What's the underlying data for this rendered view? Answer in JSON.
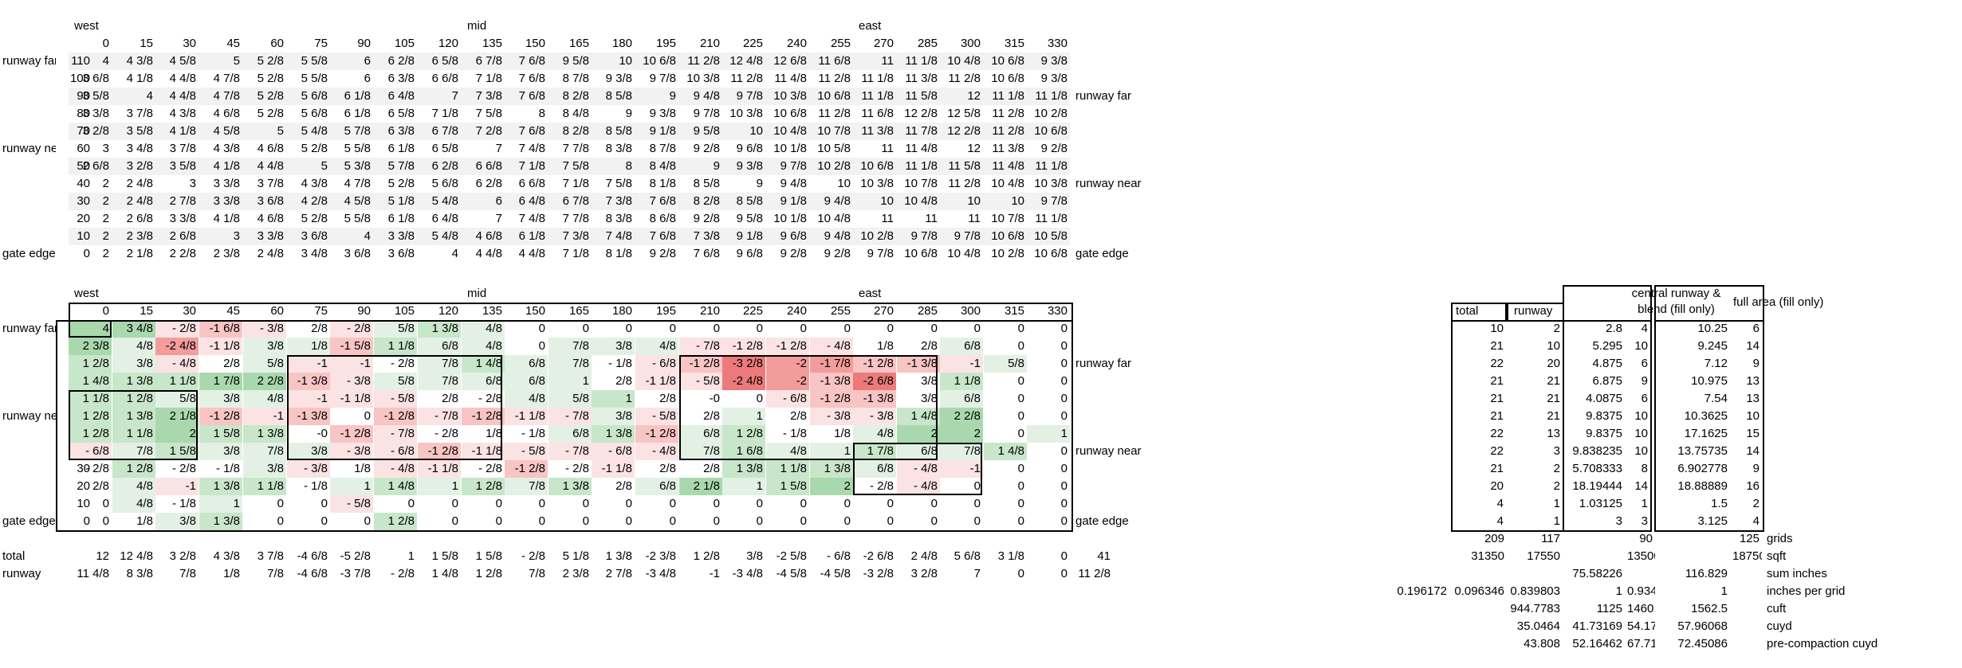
{
  "columns": [
    "0",
    "15",
    "30",
    "45",
    "60",
    "75",
    "90",
    "105",
    "120",
    "135",
    "150",
    "165",
    "180",
    "195",
    "210",
    "225",
    "240",
    "255",
    "270",
    "285",
    "300",
    "315",
    "330"
  ],
  "zones": [
    "west",
    "mid",
    "east"
  ],
  "row_labels": {
    "runway_far": "runway far",
    "runway_near": "runway near",
    "gate_edge": "gate edge"
  },
  "elevations": [
    {
      "label": "runway far",
      "y": "110",
      "values": [
        "4",
        "4 3/8",
        "4 5/8",
        "5",
        "5 2/8",
        "5 5/8",
        "6",
        "6 2/8",
        "6 5/8",
        "6 7/8",
        "7 6/8",
        "9 5/8",
        "10",
        "10 6/8",
        "11 2/8",
        "12 4/8",
        "12 6/8",
        "11 6/8",
        "11",
        "11 1/8",
        "10 4/8",
        "10 6/8",
        "9 3/8"
      ],
      "side": ""
    },
    {
      "label": "",
      "y": "100",
      "values": [
        "3 6/8",
        "4 1/8",
        "4 4/8",
        "4 7/8",
        "5 2/8",
        "5 5/8",
        "6",
        "6 3/8",
        "6 6/8",
        "7 1/8",
        "7 6/8",
        "8 7/8",
        "9 3/8",
        "9 7/8",
        "10 3/8",
        "11 2/8",
        "11 4/8",
        "11 2/8",
        "11 1/8",
        "11 3/8",
        "11 2/8",
        "10 6/8",
        "9 3/8"
      ],
      "side": ""
    },
    {
      "label": "",
      "y": "90",
      "values": [
        "3 5/8",
        "4",
        "4 4/8",
        "4 7/8",
        "5 2/8",
        "5 6/8",
        "6 1/8",
        "6 4/8",
        "7",
        "7 3/8",
        "7 6/8",
        "8 2/8",
        "8 5/8",
        "9",
        "9 4/8",
        "9 7/8",
        "10 3/8",
        "10 6/8",
        "11 1/8",
        "11 5/8",
        "12",
        "11 1/8",
        "11 1/8"
      ],
      "side": "runway far"
    },
    {
      "label": "",
      "y": "80",
      "values": [
        "3 3/8",
        "3 7/8",
        "4 3/8",
        "4 6/8",
        "5 2/8",
        "5 6/8",
        "6 1/8",
        "6 5/8",
        "7 1/8",
        "7 5/8",
        "8",
        "8 4/8",
        "9",
        "9 3/8",
        "9 7/8",
        "10 3/8",
        "10 6/8",
        "11 2/8",
        "11 6/8",
        "12 2/8",
        "12 5/8",
        "11 2/8",
        "10 2/8"
      ],
      "side": ""
    },
    {
      "label": "",
      "y": "70",
      "values": [
        "3 2/8",
        "3 5/8",
        "4 1/8",
        "4 5/8",
        "5",
        "5 4/8",
        "5 7/8",
        "6 3/8",
        "6 7/8",
        "7 2/8",
        "7 6/8",
        "8 2/8",
        "8 5/8",
        "9 1/8",
        "9 5/8",
        "10",
        "10 4/8",
        "10 7/8",
        "11 3/8",
        "11 7/8",
        "12 2/8",
        "11 2/8",
        "10 6/8"
      ],
      "side": ""
    },
    {
      "label": "runway near",
      "y": "60",
      "values": [
        "3",
        "3 4/8",
        "3 7/8",
        "4 3/8",
        "4 6/8",
        "5 2/8",
        "5 5/8",
        "6 1/8",
        "6 5/8",
        "7",
        "7 4/8",
        "7 7/8",
        "8 3/8",
        "8 7/8",
        "9 2/8",
        "9 6/8",
        "10 1/8",
        "10 5/8",
        "11",
        "11 4/8",
        "12",
        "11 3/8",
        "9 2/8"
      ],
      "side": ""
    },
    {
      "label": "",
      "y": "50",
      "values": [
        "2 6/8",
        "3 2/8",
        "3 5/8",
        "4 1/8",
        "4 4/8",
        "5",
        "5 3/8",
        "5 7/8",
        "6 2/8",
        "6 6/8",
        "7 1/8",
        "7 5/8",
        "8",
        "8 4/8",
        "9",
        "9 3/8",
        "9 7/8",
        "10 2/8",
        "10 6/8",
        "11 1/8",
        "11 5/8",
        "11 4/8",
        "11 1/8"
      ],
      "side": ""
    },
    {
      "label": "",
      "y": "40",
      "values": [
        "2",
        "2 4/8",
        "3",
        "3 3/8",
        "3 7/8",
        "4 3/8",
        "4 7/8",
        "5 2/8",
        "5 6/8",
        "6 2/8",
        "6 6/8",
        "7 1/8",
        "7 5/8",
        "8 1/8",
        "8 5/8",
        "9",
        "9 4/8",
        "10",
        "10 3/8",
        "10 7/8",
        "11 2/8",
        "10 4/8",
        "10 3/8"
      ],
      "side": "runway near"
    },
    {
      "label": "",
      "y": "30",
      "values": [
        "2",
        "2 4/8",
        "2 7/8",
        "3 3/8",
        "3 6/8",
        "4 2/8",
        "4 5/8",
        "5 1/8",
        "5 4/8",
        "6",
        "6 4/8",
        "6 7/8",
        "7 3/8",
        "7 6/8",
        "8 2/8",
        "8 5/8",
        "9 1/8",
        "9 4/8",
        "10",
        "10 4/8",
        "10",
        "10",
        "9 7/8"
      ],
      "side": ""
    },
    {
      "label": "",
      "y": "20",
      "values": [
        "2",
        "2 6/8",
        "3 3/8",
        "4 1/8",
        "4 6/8",
        "5 2/8",
        "5 5/8",
        "6 1/8",
        "6 4/8",
        "7",
        "7 4/8",
        "7 7/8",
        "8 3/8",
        "8 6/8",
        "9 2/8",
        "9 5/8",
        "10 1/8",
        "10 4/8",
        "11",
        "11",
        "11",
        "10 7/8",
        "11 1/8"
      ],
      "side": ""
    },
    {
      "label": "",
      "y": "10",
      "values": [
        "2",
        "2 3/8",
        "2 6/8",
        "3",
        "3 3/8",
        "3 6/8",
        "4",
        "3 3/8",
        "5 4/8",
        "4 6/8",
        "6 1/8",
        "7 3/8",
        "7 4/8",
        "7 6/8",
        "7 3/8",
        "9 1/8",
        "9 6/8",
        "9 4/8",
        "10 2/8",
        "9 7/8",
        "9 7/8",
        "10 6/8",
        "10 5/8"
      ],
      "side": ""
    },
    {
      "label": "gate edge",
      "y": "0",
      "values": [
        "2",
        "2 1/8",
        "2 2/8",
        "2 3/8",
        "2 4/8",
        "3 4/8",
        "3 6/8",
        "3 6/8",
        "4",
        "4 4/8",
        "4 4/8",
        "7 1/8",
        "8 1/8",
        "9 2/8",
        "7 6/8",
        "9 6/8",
        "9 2/8",
        "9 2/8",
        "9 7/8",
        "10 6/8",
        "10 4/8",
        "10 2/8",
        "10 6/8"
      ],
      "side": "gate edge"
    }
  ],
  "deltas": [
    {
      "label": "runway far",
      "y": "110",
      "values": [
        "4",
        "3 4/8",
        "- 2/8",
        "-1 6/8",
        "- 3/8",
        "2/8",
        "- 2/8",
        "5/8",
        "1 3/8",
        "4/8",
        "0",
        "0",
        "0",
        "0",
        "0",
        "0",
        "0",
        "0",
        "0",
        "0",
        "0",
        "0",
        "0"
      ],
      "tints": [
        "g3",
        "g3",
        "r1",
        "r2",
        "r1",
        "",
        "r1",
        "g1",
        "g2",
        "g1",
        "",
        "",
        "",
        "",
        "",
        "",
        "",
        "",
        "",
        "",
        "",
        "",
        ""
      ],
      "side": ""
    },
    {
      "label": "",
      "y": "100",
      "values": [
        "2 3/8",
        "4/8",
        "-2 4/8",
        "-1 1/8",
        "3/8",
        "1/8",
        "-1 5/8",
        "1 1/8",
        "6/8",
        "4/8",
        "0",
        "7/8",
        "3/8",
        "4/8",
        "- 7/8",
        "-1 2/8",
        "-1 2/8",
        "- 4/8",
        "1/8",
        "2/8",
        "6/8",
        "0",
        "0"
      ],
      "tints": [
        "g3",
        "g1",
        "r3",
        "r1",
        "g1",
        "g1",
        "r2",
        "g2",
        "g1",
        "g1",
        "",
        "g1",
        "g1",
        "g1",
        "r1",
        "r1",
        "r1",
        "r1",
        "",
        "",
        "g1",
        "",
        ""
      ],
      "side": ""
    },
    {
      "label": "",
      "y": "90",
      "values": [
        "1 2/8",
        "3/8",
        "- 4/8",
        "2/8",
        "5/8",
        "-1",
        "-1",
        "- 2/8",
        "7/8",
        "1 4/8",
        "6/8",
        "7/8",
        "- 1/8",
        "- 6/8",
        "-1 2/8",
        "-3 2/8",
        "-2",
        "-1 7/8",
        "-1 2/8",
        "-1 3/8",
        "-1",
        "5/8",
        "0"
      ],
      "tints": [
        "g2",
        "g1",
        "r1",
        "",
        "g1",
        "r1",
        "r1",
        "",
        "g1",
        "g2",
        "g1",
        "g1",
        "",
        "r1",
        "r2",
        "r4",
        "r3",
        "r3",
        "r2",
        "r2",
        "r1",
        "g1",
        ""
      ],
      "side": "runway far"
    },
    {
      "label": "",
      "y": "80",
      "values": [
        "1 4/8",
        "1 3/8",
        "1 1/8",
        "1 7/8",
        "2 2/8",
        "-1 3/8",
        "- 3/8",
        "5/8",
        "7/8",
        "6/8",
        "6/8",
        "1",
        "2/8",
        "-1 1/8",
        "- 5/8",
        "-2 4/8",
        "-2",
        "-1 3/8",
        "-2 6/8",
        "3/8",
        "1 1/8",
        "0",
        "0"
      ],
      "tints": [
        "g2",
        "g2",
        "g2",
        "g3",
        "g3",
        "r2",
        "r1",
        "g1",
        "g1",
        "g1",
        "g1",
        "g1",
        "",
        "r1",
        "r1",
        "r4",
        "r3",
        "r2",
        "r4",
        "",
        "g2",
        "",
        ""
      ],
      "side": ""
    },
    {
      "label": "",
      "y": "70",
      "values": [
        "1 1/8",
        "1 2/8",
        "5/8",
        "3/8",
        "4/8",
        "-1",
        "-1 1/8",
        "- 5/8",
        "2/8",
        "- 2/8",
        "4/8",
        "5/8",
        "1",
        "2/8",
        "-0",
        "0",
        "- 6/8",
        "-1 2/8",
        "-1 3/8",
        "3/8",
        "6/8",
        "0",
        "0"
      ],
      "tints": [
        "g2",
        "g2",
        "g1",
        "g1",
        "g1",
        "r1",
        "r1",
        "r1",
        "",
        "",
        "g1",
        "g1",
        "g2",
        "",
        "",
        "",
        "r1",
        "r2",
        "r2",
        "",
        "g1",
        "",
        ""
      ],
      "side": ""
    },
    {
      "label": "runway near",
      "y": "60",
      "values": [
        "1 2/8",
        "1 3/8",
        "2 1/8",
        "-1 2/8",
        "-1",
        "-1 3/8",
        "0",
        "-1 2/8",
        "- 7/8",
        "-1 2/8",
        "-1 1/8",
        "- 7/8",
        "3/8",
        "- 5/8",
        "2/8",
        "1",
        "2/8",
        "- 3/8",
        "- 3/8",
        "1 4/8",
        "2 2/8",
        "0",
        "0"
      ],
      "tints": [
        "g2",
        "g2",
        "g3",
        "r2",
        "r1",
        "r2",
        "",
        "r2",
        "r1",
        "r2",
        "r1",
        "r1",
        "g1",
        "r1",
        "",
        "g1",
        "",
        "r1",
        "r1",
        "g2",
        "g3",
        "",
        ""
      ],
      "side": ""
    },
    {
      "label": "",
      "y": "50",
      "values": [
        "1 2/8",
        "1 1/8",
        "2",
        "1 5/8",
        "1 3/8",
        "-0",
        "-1 2/8",
        "- 7/8",
        "- 2/8",
        "1/8",
        "- 1/8",
        "6/8",
        "1 3/8",
        "-1 2/8",
        "6/8",
        "1 2/8",
        "- 1/8",
        "1/8",
        "4/8",
        "2",
        "2",
        "0",
        "1"
      ],
      "tints": [
        "g2",
        "g2",
        "g3",
        "g2",
        "g2",
        "",
        "r2",
        "r1",
        "",
        "",
        "",
        "g1",
        "g2",
        "r2",
        "g1",
        "g2",
        "",
        "",
        "g1",
        "g3",
        "g3",
        "",
        "g1"
      ],
      "side": ""
    },
    {
      "label": "",
      "y": "40",
      "values": [
        "- 6/8",
        "7/8",
        "1 5/8",
        "3/8",
        "7/8",
        "3/8",
        "- 3/8",
        "- 6/8",
        "-1 2/8",
        "-1 1/8",
        "- 5/8",
        "- 7/8",
        "- 6/8",
        "- 4/8",
        "7/8",
        "1 6/8",
        "4/8",
        "1",
        "1 7/8",
        "6/8",
        "7/8",
        "1 4/8",
        "0"
      ],
      "tints": [
        "r1",
        "g1",
        "g2",
        "g1",
        "g1",
        "g1",
        "r1",
        "r1",
        "r2",
        "r1",
        "r1",
        "r1",
        "r1",
        "r1",
        "g1",
        "g2",
        "g1",
        "g1",
        "g2",
        "g1",
        "g1",
        "g2",
        ""
      ],
      "side": "runway near"
    },
    {
      "label": "",
      "y": "30",
      "values": [
        "- 2/8",
        "1 2/8",
        "- 2/8",
        "- 1/8",
        "3/8",
        "- 3/8",
        "1/8",
        "- 4/8",
        "-1 1/8",
        "- 2/8",
        "-1 2/8",
        "- 2/8",
        "-1 1/8",
        "2/8",
        "2/8",
        "1 3/8",
        "1 1/8",
        "1 3/8",
        "6/8",
        "- 4/8",
        "-1",
        "0",
        "0"
      ],
      "tints": [
        "",
        "g2",
        "",
        "",
        "g1",
        "r1",
        "",
        "r1",
        "r1",
        "",
        "r2",
        "",
        "r1",
        "",
        "",
        "g2",
        "g2",
        "g2",
        "g1",
        "r1",
        "r1",
        "",
        ""
      ],
      "side": ""
    },
    {
      "label": "",
      "y": "20",
      "values": [
        "2/8",
        "4/8",
        "-1",
        "1 3/8",
        "1 1/8",
        "- 1/8",
        "1",
        "1 4/8",
        "1",
        "1 2/8",
        "7/8",
        "1 3/8",
        "2/8",
        "6/8",
        "2 1/8",
        "1",
        "1 5/8",
        "2",
        "- 2/8",
        "- 4/8",
        "0",
        "0",
        "0"
      ],
      "tints": [
        "",
        "g1",
        "r1",
        "g2",
        "g2",
        "",
        "g1",
        "g2",
        "g1",
        "g2",
        "g1",
        "g2",
        "",
        "g1",
        "g3",
        "g1",
        "g2",
        "g3",
        "",
        "r1",
        "",
        "",
        ""
      ],
      "side": ""
    },
    {
      "label": "",
      "y": "10",
      "values": [
        "0",
        "4/8",
        "- 1/8",
        "1",
        "0",
        "0",
        "- 5/8",
        "0",
        "0",
        "0",
        "0",
        "0",
        "0",
        "0",
        "0",
        "0",
        "0",
        "0",
        "0",
        "0",
        "0",
        "0",
        "0"
      ],
      "tints": [
        "",
        "g1",
        "",
        "g1",
        "",
        "",
        "r1",
        "",
        "",
        "",
        "",
        "",
        "",
        "",
        "",
        "",
        "",
        "",
        "",
        "",
        "",
        "",
        ""
      ],
      "side": ""
    },
    {
      "label": "gate edge",
      "y": "0",
      "values": [
        "0",
        "1/8",
        "3/8",
        "1 3/8",
        "0",
        "0",
        "0",
        "1 2/8",
        "0",
        "0",
        "0",
        "0",
        "0",
        "0",
        "0",
        "0",
        "0",
        "0",
        "0",
        "0",
        "0",
        "0",
        "0"
      ],
      "tints": [
        "",
        "",
        "g1",
        "g2",
        "",
        "",
        "",
        "g2",
        "",
        "",
        "",
        "",
        "",
        "",
        "",
        "",
        "",
        "",
        "",
        "",
        "",
        "",
        ""
      ],
      "side": "gate edge"
    }
  ],
  "total_row": {
    "label": "total",
    "values": [
      "12",
      "12 4/8",
      "3 2/8",
      "4 3/8",
      "3 7/8",
      "-4 6/8",
      "-5 2/8",
      "1",
      "1 5/8",
      "1 5/8",
      "- 2/8",
      "5 1/8",
      "1 3/8",
      "-2 3/8",
      "1 2/8",
      "3/8",
      "-2 5/8",
      "- 6/8",
      "-2 6/8",
      "2 4/8",
      "5 6/8",
      "3 1/8",
      "0"
    ],
    "extra": "41"
  },
  "runway_row": {
    "label": "runway",
    "values": [
      "11 4/8",
      "8 3/8",
      "7/8",
      "1/8",
      "7/8",
      "-4 6/8",
      "-3 7/8",
      "- 2/8",
      "1 4/8",
      "1 2/8",
      "7/8",
      "2 3/8",
      "2 7/8",
      "-3 4/8",
      "-1",
      "-3 4/8",
      "-4 5/8",
      "-4 5/8",
      "-3 2/8",
      "3 2/8",
      "7",
      "0",
      "0"
    ],
    "extra": "11 2/8"
  },
  "summary": {
    "headers": {
      "total": "total",
      "runway": "runway",
      "central": "central runway & blend (fill only)",
      "full": "full area (fill only)"
    },
    "rows": [
      [
        "10",
        "2",
        "2.8",
        "4",
        "10.25",
        "6"
      ],
      [
        "21",
        "10",
        "5.295",
        "10",
        "9.245",
        "14"
      ],
      [
        "22",
        "20",
        "4.875",
        "6",
        "7.12",
        "9"
      ],
      [
        "21",
        "21",
        "6.875",
        "9",
        "10.975",
        "13"
      ],
      [
        "21",
        "21",
        "4.0875",
        "6",
        "7.54",
        "13"
      ],
      [
        "21",
        "21",
        "9.8375",
        "10",
        "10.3625",
        "10"
      ],
      [
        "22",
        "13",
        "9.8375",
        "10",
        "17.1625",
        "15"
      ],
      [
        "22",
        "3",
        "9.838235",
        "10",
        "13.75735",
        "14"
      ],
      [
        "21",
        "2",
        "5.708333",
        "8",
        "6.902778",
        "9"
      ],
      [
        "20",
        "2",
        "18.19444",
        "14",
        "18.88889",
        "16"
      ],
      [
        "4",
        "1",
        "1.03125",
        "1",
        "1.5",
        "2"
      ],
      [
        "4",
        "1",
        "3",
        "3",
        "3.125",
        "4"
      ]
    ],
    "footer": [
      {
        "cells": [
          "",
          "209",
          "117",
          "",
          "90",
          "",
          "125"
        ],
        "label": "grids"
      },
      {
        "cells": [
          "",
          "31350",
          "17550",
          "",
          "13500",
          "",
          "18750"
        ],
        "label": "sqft"
      },
      {
        "cells": [
          "",
          "",
          "",
          "75.58226",
          "",
          "116.829",
          ""
        ],
        "label": "sum inches"
      },
      {
        "cells": [
          "0.196172",
          "0.096346",
          "0.839803",
          "1",
          "0.934632",
          "1",
          ""
        ],
        "label": "inches per grid"
      },
      {
        "cells": [
          "",
          "",
          "944.7783",
          "1125",
          "1460.363",
          "1562.5",
          ""
        ],
        "label": "cuft"
      },
      {
        "cells": [
          "",
          "",
          "35.0464",
          "41.73169",
          "54.17192",
          "57.96068",
          ""
        ],
        "label": "cuyd"
      },
      {
        "cells": [
          "",
          "",
          "43.808",
          "52.16462",
          "67.7149",
          "72.45086",
          ""
        ],
        "label": "pre-compaction cuyd"
      }
    ]
  },
  "colors": {
    "g1": "#e3f1e4",
    "g2": "#c8e6ca",
    "g3": "#a9d8ad",
    "r1": "#fbe3e3",
    "r2": "#f8c4c4",
    "r3": "#f39c9c",
    "r4": "#ec7a7a",
    "zebra": "#f2f2f2"
  }
}
